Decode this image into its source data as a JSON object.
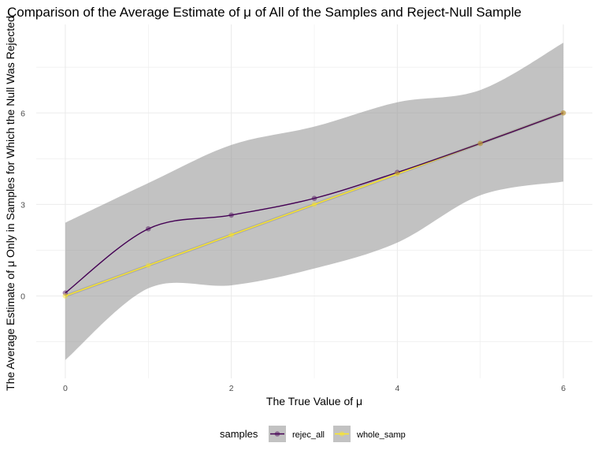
{
  "chart_data": {
    "type": "line",
    "title": "Comparison of the Average Estimate of μ of All of the Samples and Reject-Null Sample",
    "xlabel": "The True Value of μ",
    "ylabel": "The Average Estimate of μ Only in Samples for Which the Null Was Rejected",
    "x_ticks": [
      "0",
      "2",
      "4",
      "6"
    ],
    "y_ticks": [
      "0",
      "3",
      "6"
    ],
    "xlim": [
      -0.35,
      6.35
    ],
    "ylim": [
      -2.7,
      8.9
    ],
    "x_tick_values": [
      0,
      2,
      4,
      6
    ],
    "y_tick_values": [
      0,
      3,
      6
    ],
    "grid": true,
    "legend_position": "bottom",
    "legend_title": "samples",
    "x": [
      0,
      1,
      2,
      3,
      4,
      5,
      6
    ],
    "series": [
      {
        "name": "rejec_all",
        "color": "#440154",
        "values": [
          0.1,
          2.2,
          2.65,
          3.2,
          4.05,
          5.0,
          6.0
        ],
        "ribbon_upper": [
          2.4,
          3.7,
          4.95,
          5.55,
          6.35,
          6.75,
          8.3
        ],
        "ribbon_lower": [
          -2.1,
          0.25,
          0.35,
          0.9,
          1.75,
          3.3,
          3.75
        ]
      },
      {
        "name": "whole_samp",
        "color": "#FDE725",
        "values": [
          0.0,
          1.0,
          2.0,
          3.0,
          4.0,
          5.0,
          6.0
        ],
        "ribbon_upper": [
          0.05,
          1.05,
          2.05,
          3.05,
          4.05,
          5.05,
          6.05
        ],
        "ribbon_lower": [
          -0.05,
          0.95,
          1.95,
          2.95,
          3.95,
          4.95,
          5.95
        ]
      }
    ]
  }
}
